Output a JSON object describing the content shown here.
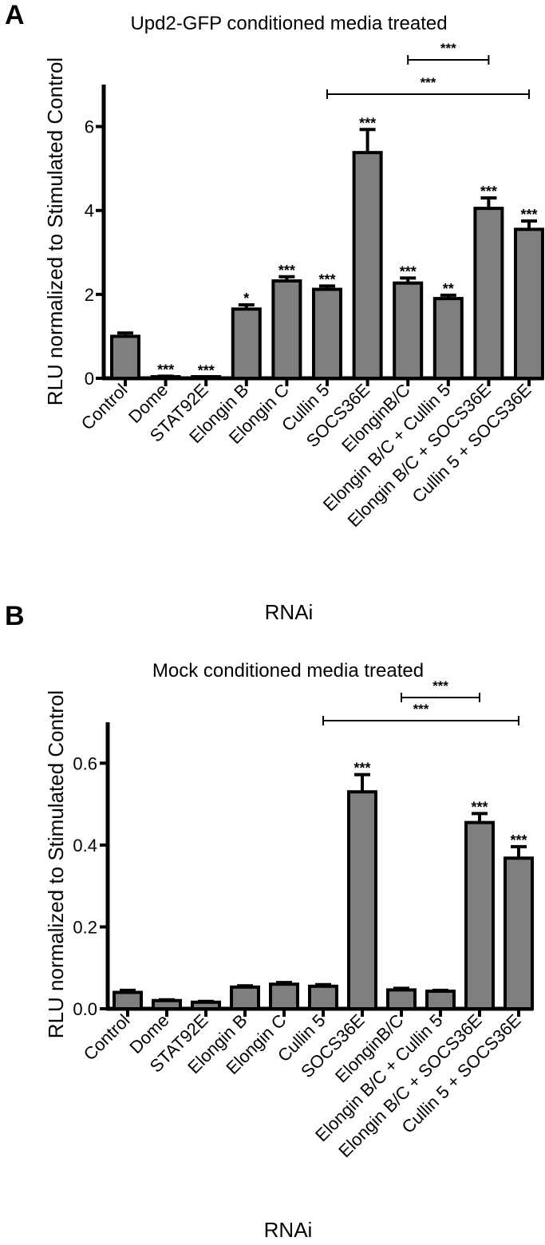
{
  "chart_data": [
    {
      "panel": "A",
      "type": "bar",
      "title": "Upd2-GFP conditioned media treated",
      "xlabel": "RNAi",
      "ylabel": "RLU normalized to Stimulated Control",
      "ylim": [
        0,
        7
      ],
      "yticks": [
        "0",
        "2",
        "4",
        "6"
      ],
      "categories": [
        "Control",
        "Dome",
        "STAT92E",
        "Elongin B",
        "Elongin C",
        "Cullin 5",
        "SOCS36E",
        "ElonginB/C",
        "Elongin B/C + Cullin 5",
        "Elongin B/C + SOCS36E",
        "Cullin 5 + SOCS36E"
      ],
      "values": [
        1.0,
        0.03,
        0.02,
        1.65,
        2.32,
        2.12,
        5.38,
        2.27,
        1.9,
        4.05,
        3.55
      ],
      "errors": [
        0.08,
        0.02,
        0.01,
        0.1,
        0.1,
        0.08,
        0.55,
        0.12,
        0.08,
        0.25,
        0.2
      ],
      "significance": [
        "",
        "***",
        "***",
        "*",
        "***",
        "***",
        "***",
        "***",
        "**",
        "***",
        "***"
      ],
      "brackets": [
        {
          "from": 7,
          "to": 9,
          "label": "***"
        },
        {
          "from": 5,
          "to": 10,
          "label": "***"
        }
      ],
      "bar_color": "#7f7f7f",
      "grid": false
    },
    {
      "panel": "B",
      "type": "bar",
      "title": "Mock conditioned media treated",
      "xlabel": "RNAi",
      "ylabel": "RLU normalized to Stimulated Control",
      "ylim": [
        0,
        0.7
      ],
      "yticks": [
        "0.0",
        "0.2",
        "0.4",
        "0.6"
      ],
      "categories": [
        "Control",
        "Dome",
        "STAT92E",
        "Elongin B",
        "Elongin C",
        "Cullin 5",
        "SOCS36E",
        "ElonginB/C",
        "Elongin B/C + Cullin 5",
        "Elongin B/C + SOCS36E",
        "Cullin 5 + SOCS36E"
      ],
      "values": [
        0.04,
        0.02,
        0.016,
        0.053,
        0.06,
        0.055,
        0.53,
        0.046,
        0.043,
        0.455,
        0.368
      ],
      "errors": [
        0.005,
        0.002,
        0.002,
        0.003,
        0.004,
        0.004,
        0.042,
        0.004,
        0.002,
        0.022,
        0.028
      ],
      "significance": [
        "",
        "",
        "",
        "",
        "",
        "",
        "***",
        "",
        "",
        "***",
        "***"
      ],
      "brackets": [
        {
          "from": 7,
          "to": 9,
          "label": "***"
        },
        {
          "from": 5,
          "to": 10,
          "label": "***"
        }
      ],
      "bar_color": "#7f7f7f",
      "grid": false
    }
  ]
}
